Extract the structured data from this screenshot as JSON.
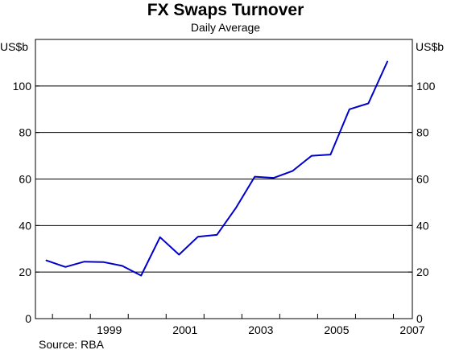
{
  "chart_data": {
    "type": "line",
    "title": "FX Swaps Turnover",
    "subtitle": "Daily Average",
    "ylabel_left": "US$b",
    "ylabel_right": "US$b",
    "source": "Source: RBA",
    "ylim": [
      0,
      120
    ],
    "yticks": [
      0,
      20,
      40,
      60,
      80,
      100
    ],
    "xlim": [
      1997.55,
      2007.5
    ],
    "xticks": [
      1999,
      2001,
      2003,
      2005,
      2007
    ],
    "grid": true,
    "color": "#0000cc",
    "series": [
      {
        "x": [
          1997.84,
          1998.34,
          1998.84,
          1999.34,
          1999.84,
          2000.34,
          2000.84,
          2001.34,
          2001.84,
          2002.34,
          2002.84,
          2003.34,
          2003.84,
          2004.34,
          2004.84,
          2005.34,
          2005.84,
          2006.34,
          2006.84
        ],
        "values": [
          25,
          22.2,
          24.5,
          24.3,
          22.7,
          18.5,
          35,
          27.5,
          35.2,
          36,
          47.5,
          61,
          60.5,
          63.5,
          70,
          70.5,
          90,
          92.5,
          110.5
        ]
      }
    ]
  }
}
